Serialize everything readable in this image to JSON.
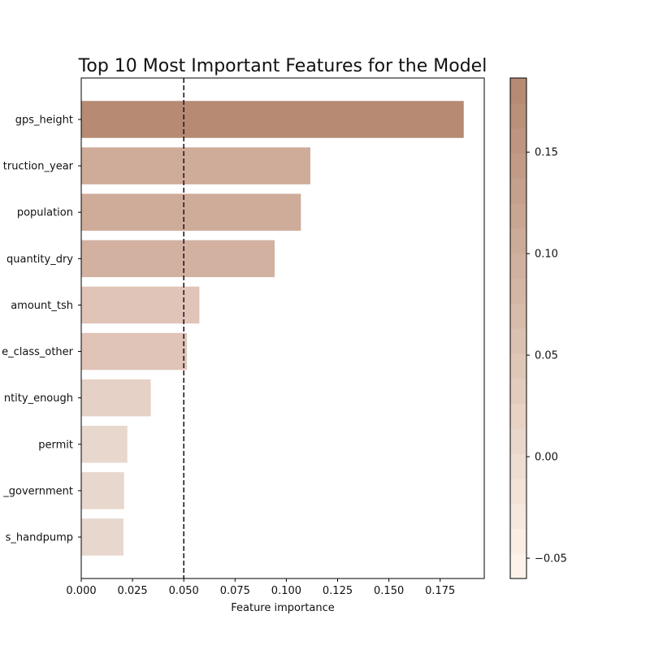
{
  "chart_data": {
    "type": "bar",
    "orientation": "horizontal",
    "title": "Top 10 Most Important Features for the Model",
    "xlabel": "Feature importance",
    "ylabel": "",
    "xlim": [
      0,
      0.1965
    ],
    "categories": [
      "gps_height",
      "construction_year",
      "population",
      "quantity_dry",
      "amount_tsh",
      "source_class_other",
      "quantity_enough",
      "permit",
      "installer_government",
      "extraction_type_class_handpump"
    ],
    "category_labels_visible": [
      "gps_height",
      "truction_year",
      "population",
      "quantity_dry",
      "amount_tsh",
      "e_class_other",
      "ntity_enough",
      "permit",
      "_government",
      "s_handpump"
    ],
    "values": [
      0.1865,
      0.1117,
      0.1071,
      0.0943,
      0.0576,
      0.0515,
      0.0339,
      0.0225,
      0.0209,
      0.0206
    ],
    "bar_colors": [
      "#b68a73",
      "#cfab9a",
      "#cfab9a",
      "#d3b1a1",
      "#e0c4b7",
      "#e0c4b7",
      "#e6d1c6",
      "#e8d7cd",
      "#e8d7cd",
      "#e8d7cd"
    ],
    "x_ticks": [
      "0.000",
      "0.025",
      "0.050",
      "0.075",
      "0.100",
      "0.125",
      "0.150",
      "0.175"
    ],
    "x_tick_values": [
      0,
      0.025,
      0.05,
      0.075,
      0.1,
      0.125,
      0.15,
      0.175
    ],
    "reference_line": {
      "x": 0.05,
      "style": "dashed",
      "color": "#2a1a24"
    },
    "grid": false,
    "colorbar": {
      "range": [
        -0.06,
        0.1865
      ],
      "ticks": [
        "−0.05",
        "0.00",
        "0.05",
        "0.10",
        "0.15"
      ],
      "tick_values": [
        -0.05,
        0,
        0.05,
        0.1,
        0.15
      ],
      "color_low": "#fdf3ea",
      "color_high": "#b68a73",
      "steps": 20
    }
  }
}
